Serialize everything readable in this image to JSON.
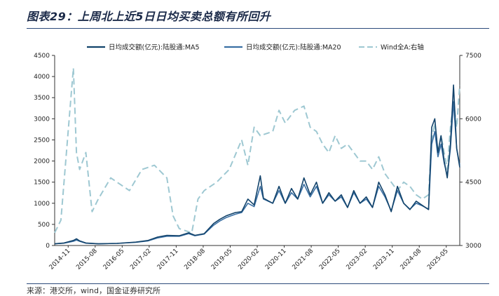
{
  "figure": {
    "title": "图表29：上周北上近5日日均买卖总额有所回升",
    "source": "来源：港交所，wind，国金证券研究所"
  },
  "chart_data": {
    "type": "line",
    "title": "图表29：上周北上近5日日均买卖总额有所回升",
    "x_categories": [
      "2014-11",
      "2015-08",
      "2016-05",
      "2017-02",
      "2017-11",
      "2018-08",
      "2019-05",
      "2020-02",
      "2020-11",
      "2021-08",
      "2022-05",
      "2023-02",
      "2023-11",
      "2024-08",
      "2025-05"
    ],
    "x_range_months": [
      0,
      130
    ],
    "left_axis": {
      "label": "",
      "ylim": [
        0,
        4500
      ],
      "ticks": [
        0,
        500,
        1000,
        1500,
        2000,
        2500,
        3000,
        3500,
        4000,
        4500
      ]
    },
    "right_axis": {
      "label": "",
      "ylim": [
        3000,
        7500
      ],
      "ticks": [
        3000,
        4500,
        6000,
        7500
      ]
    },
    "series": [
      {
        "name": "日均成交额(亿元):陆股通:MA5",
        "axis": "left",
        "color": "#12436b",
        "style": "solid",
        "points": [
          [
            0,
            40
          ],
          [
            3,
            60
          ],
          [
            6,
            120
          ],
          [
            7,
            160
          ],
          [
            8,
            110
          ],
          [
            10,
            60
          ],
          [
            14,
            40
          ],
          [
            20,
            50
          ],
          [
            26,
            80
          ],
          [
            30,
            120
          ],
          [
            33,
            200
          ],
          [
            36,
            240
          ],
          [
            40,
            230
          ],
          [
            43,
            300
          ],
          [
            45,
            240
          ],
          [
            48,
            280
          ],
          [
            51,
            520
          ],
          [
            53,
            620
          ],
          [
            55,
            700
          ],
          [
            58,
            780
          ],
          [
            60,
            800
          ],
          [
            62,
            1100
          ],
          [
            64,
            960
          ],
          [
            66,
            1650
          ],
          [
            67,
            1120
          ],
          [
            70,
            1000
          ],
          [
            72,
            1400
          ],
          [
            74,
            1000
          ],
          [
            76,
            1350
          ],
          [
            78,
            1100
          ],
          [
            80,
            1600
          ],
          [
            82,
            1200
          ],
          [
            84,
            1500
          ],
          [
            86,
            1000
          ],
          [
            88,
            1250
          ],
          [
            90,
            1050
          ],
          [
            92,
            1200
          ],
          [
            94,
            900
          ],
          [
            96,
            1300
          ],
          [
            98,
            1000
          ],
          [
            100,
            1150
          ],
          [
            102,
            900
          ],
          [
            104,
            1500
          ],
          [
            106,
            1200
          ],
          [
            108,
            800
          ],
          [
            110,
            1400
          ],
          [
            112,
            1000
          ],
          [
            114,
            850
          ],
          [
            116,
            1050
          ],
          [
            118,
            950
          ],
          [
            120,
            850
          ],
          [
            121,
            2800
          ],
          [
            122,
            3000
          ],
          [
            123,
            2200
          ],
          [
            124,
            2600
          ],
          [
            125,
            2000
          ],
          [
            126,
            1600
          ],
          [
            127,
            2400
          ],
          [
            128,
            3800
          ],
          [
            129,
            2300
          ],
          [
            130,
            1850
          ]
        ]
      },
      {
        "name": "日均成交额(亿元):陆股通:MA20",
        "axis": "left",
        "color": "#3a6fa3",
        "style": "solid",
        "points": [
          [
            0,
            40
          ],
          [
            3,
            55
          ],
          [
            6,
            100
          ],
          [
            7,
            130
          ],
          [
            8,
            100
          ],
          [
            10,
            55
          ],
          [
            14,
            40
          ],
          [
            20,
            50
          ],
          [
            26,
            75
          ],
          [
            30,
            110
          ],
          [
            33,
            180
          ],
          [
            36,
            220
          ],
          [
            40,
            220
          ],
          [
            43,
            280
          ],
          [
            45,
            230
          ],
          [
            48,
            270
          ],
          [
            51,
            480
          ],
          [
            53,
            580
          ],
          [
            55,
            660
          ],
          [
            58,
            740
          ],
          [
            60,
            780
          ],
          [
            62,
            1000
          ],
          [
            64,
            920
          ],
          [
            66,
            1400
          ],
          [
            67,
            1100
          ],
          [
            70,
            1000
          ],
          [
            72,
            1300
          ],
          [
            74,
            1000
          ],
          [
            76,
            1250
          ],
          [
            78,
            1100
          ],
          [
            80,
            1450
          ],
          [
            82,
            1150
          ],
          [
            84,
            1400
          ],
          [
            86,
            1000
          ],
          [
            88,
            1200
          ],
          [
            90,
            1050
          ],
          [
            92,
            1150
          ],
          [
            94,
            900
          ],
          [
            96,
            1250
          ],
          [
            98,
            1000
          ],
          [
            100,
            1100
          ],
          [
            102,
            900
          ],
          [
            104,
            1400
          ],
          [
            106,
            1150
          ],
          [
            108,
            820
          ],
          [
            110,
            1300
          ],
          [
            112,
            1000
          ],
          [
            114,
            860
          ],
          [
            116,
            1000
          ],
          [
            118,
            940
          ],
          [
            120,
            860
          ],
          [
            121,
            2400
          ],
          [
            122,
            2700
          ],
          [
            123,
            2100
          ],
          [
            124,
            2400
          ],
          [
            125,
            1950
          ],
          [
            126,
            1650
          ],
          [
            127,
            2300
          ],
          [
            128,
            3400
          ],
          [
            129,
            2300
          ],
          [
            130,
            1900
          ]
        ]
      },
      {
        "name": "Wind全A:右轴",
        "axis": "right",
        "color": "#9ec8d2",
        "style": "dashed",
        "points": [
          [
            0,
            3300
          ],
          [
            2,
            3600
          ],
          [
            5,
            6300
          ],
          [
            6,
            7200
          ],
          [
            7,
            5200
          ],
          [
            8,
            4800
          ],
          [
            10,
            5200
          ],
          [
            12,
            3800
          ],
          [
            14,
            4100
          ],
          [
            18,
            4600
          ],
          [
            20,
            4500
          ],
          [
            24,
            4300
          ],
          [
            28,
            4800
          ],
          [
            32,
            4900
          ],
          [
            36,
            4600
          ],
          [
            38,
            3700
          ],
          [
            40,
            3400
          ],
          [
            44,
            3300
          ],
          [
            46,
            4100
          ],
          [
            48,
            4300
          ],
          [
            52,
            4500
          ],
          [
            56,
            4800
          ],
          [
            60,
            5500
          ],
          [
            62,
            4900
          ],
          [
            64,
            5800
          ],
          [
            66,
            5600
          ],
          [
            70,
            5700
          ],
          [
            72,
            6200
          ],
          [
            74,
            5900
          ],
          [
            77,
            6200
          ],
          [
            80,
            6300
          ],
          [
            82,
            5800
          ],
          [
            84,
            5700
          ],
          [
            86,
            5400
          ],
          [
            88,
            5200
          ],
          [
            90,
            5600
          ],
          [
            92,
            5300
          ],
          [
            94,
            5400
          ],
          [
            96,
            5200
          ],
          [
            98,
            5000
          ],
          [
            100,
            5000
          ],
          [
            102,
            4800
          ],
          [
            104,
            5100
          ],
          [
            106,
            4700
          ],
          [
            108,
            4500
          ],
          [
            110,
            4300
          ],
          [
            112,
            4500
          ],
          [
            114,
            4400
          ],
          [
            116,
            4200
          ],
          [
            118,
            4100
          ],
          [
            120,
            4200
          ],
          [
            121,
            5500
          ],
          [
            122,
            5900
          ],
          [
            123,
            5200
          ],
          [
            124,
            5600
          ],
          [
            125,
            5200
          ],
          [
            126,
            4800
          ],
          [
            127,
            5800
          ],
          [
            128,
            6400
          ],
          [
            129,
            5800
          ],
          [
            130,
            6800
          ]
        ]
      }
    ]
  }
}
